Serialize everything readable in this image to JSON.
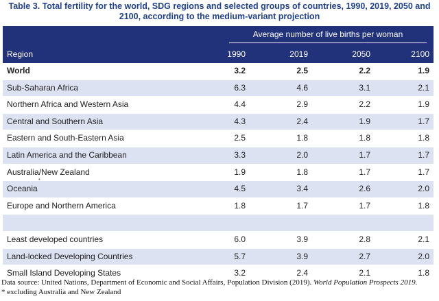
{
  "title": "Table 3. Total fertility for the world, SDG regions and selected groups of countries, 1990, 2019, 2050 and 2100, according to the medium-variant projection",
  "header": {
    "group_label": "Average number of live births per woman",
    "region_label": "Region",
    "years": [
      "1990",
      "2019",
      "2050",
      "2100"
    ]
  },
  "rows": [
    {
      "name": "World",
      "values": [
        "3.2",
        "2.5",
        "2.2",
        "1.9"
      ]
    },
    {
      "name": "Sub-Saharan Africa",
      "values": [
        "6.3",
        "4.6",
        "3.1",
        "2.1"
      ]
    },
    {
      "name": "Northern Africa and Western Asia",
      "values": [
        "4.4",
        "2.9",
        "2.2",
        "1.9"
      ]
    },
    {
      "name": "Central and Southern Asia",
      "values": [
        "4.3",
        "2.4",
        "1.9",
        "1.7"
      ]
    },
    {
      "name": "Eastern and South-Eastern Asia",
      "values": [
        "2.5",
        "1.8",
        "1.8",
        "1.8"
      ]
    },
    {
      "name": "Latin America and the Caribbean",
      "values": [
        "3.3",
        "2.0",
        "1.7",
        "1.7"
      ]
    },
    {
      "name": "Australia/New Zealand",
      "values": [
        "1.9",
        "1.8",
        "1.7",
        "1.7"
      ]
    },
    {
      "name": "Oceania",
      "marker": "*",
      "values": [
        "4.5",
        "3.4",
        "2.6",
        "2.0"
      ]
    },
    {
      "name": "Europe and Northern America",
      "values": [
        "1.8",
        "1.7",
        "1.7",
        "1.8"
      ]
    },
    {
      "name": "",
      "values": [
        "",
        "",
        "",
        ""
      ]
    },
    {
      "name": "Least developed countries",
      "values": [
        "6.0",
        "3.9",
        "2.8",
        "2.1"
      ]
    },
    {
      "name": "Land-locked Developing Countries",
      "values": [
        "5.7",
        "3.9",
        "2.7",
        "2.0"
      ]
    },
    {
      "name": "Small Island Developing States",
      "values": [
        "3.2",
        "2.4",
        "2.1",
        "1.8"
      ]
    }
  ],
  "footer": {
    "source_prefix": "Data source: United Nations, Department of Economic and Social Affairs, Population Division (2019).",
    "source_title": "World Population Prospects 2019.",
    "note": "* excluding Australia and New Zealand"
  }
}
